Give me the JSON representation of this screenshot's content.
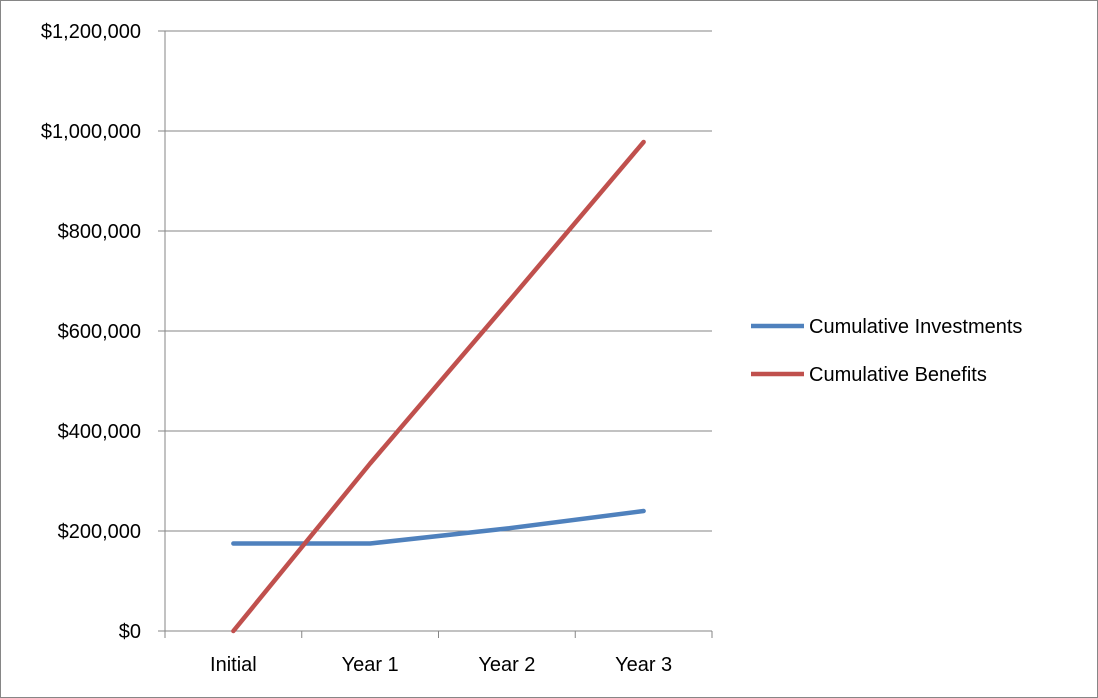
{
  "chart_data": {
    "type": "line",
    "categories": [
      "Initial",
      "Year 1",
      "Year 2",
      "Year 3"
    ],
    "series": [
      {
        "name": "Cumulative Investments",
        "color": "#4f81bd",
        "values": [
          175000,
          175000,
          205000,
          240000
        ]
      },
      {
        "name": "Cumulative Benefits",
        "color": "#c0504d",
        "values": [
          0,
          335000,
          655000,
          978000
        ]
      }
    ],
    "ylim": [
      0,
      1200000
    ],
    "yticks": [
      0,
      200000,
      400000,
      600000,
      800000,
      1000000,
      1200000
    ],
    "ytick_labels": [
      "$0",
      "$200,000",
      "$400,000",
      "$600,000",
      "$800,000",
      "$1,000,000",
      "$1,200,000"
    ],
    "grid": true,
    "legend_position": "right",
    "colors": {
      "gridline": "#868686",
      "axis": "#868686",
      "border": "#868686"
    }
  }
}
